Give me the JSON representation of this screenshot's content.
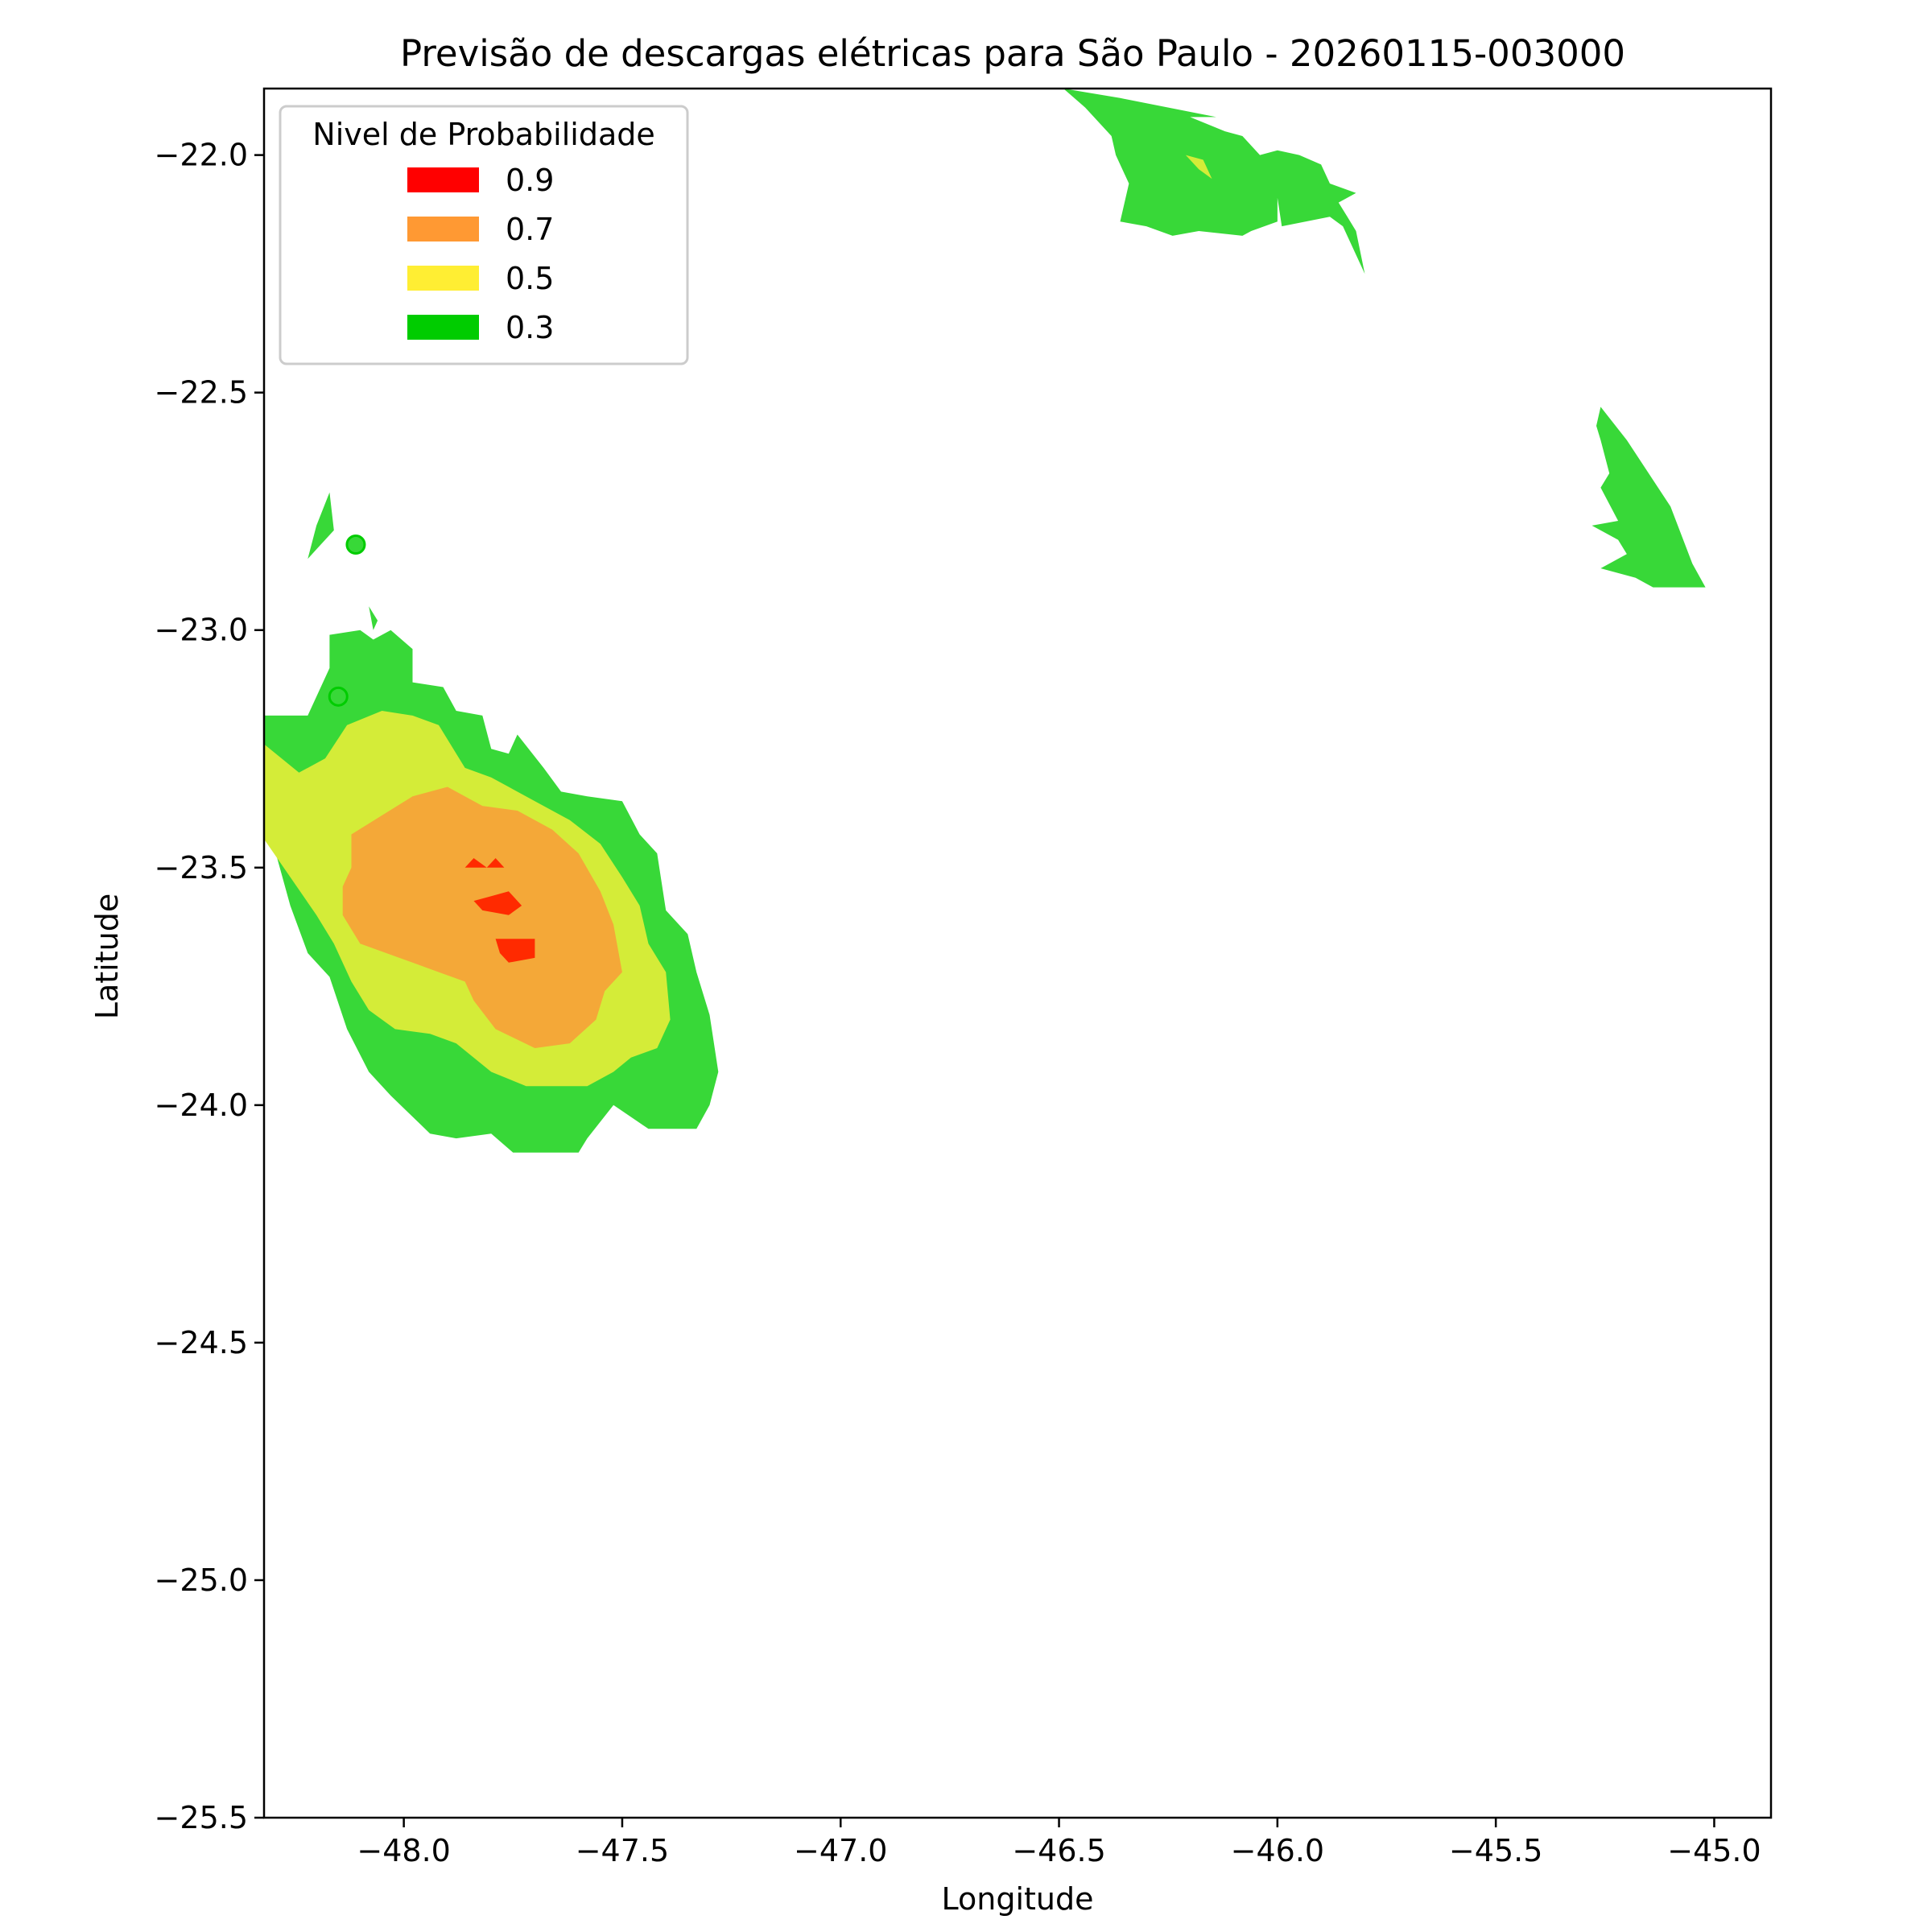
{
  "chart_data": {
    "type": "contour",
    "title": "Previsão de descargas elétricas para São Paulo - 20260115-003000",
    "xlabel": "Longitude",
    "ylabel": "Latitude",
    "xlim": [
      -48.32,
      -44.87
    ],
    "ylim": [
      -25.5,
      -21.86
    ],
    "xticks": [
      -48.0,
      -47.5,
      -47.0,
      -46.5,
      -46.0,
      -45.5,
      -45.0
    ],
    "xtick_labels": [
      "−48.0",
      "−47.5",
      "−47.0",
      "−46.5",
      "−46.0",
      "−45.5",
      "−45.0"
    ],
    "yticks": [
      -22.0,
      -22.5,
      -23.0,
      -23.5,
      -24.0,
      -24.5,
      -25.0,
      -25.5
    ],
    "ytick_labels": [
      "−22.0",
      "−22.5",
      "−23.0",
      "−23.5",
      "−24.0",
      "−24.5",
      "−25.0",
      "−25.5"
    ],
    "grid": false,
    "legend": {
      "title": "Nivel de Probabilidade",
      "placement": "top-left",
      "items": [
        {
          "label": "0.9",
          "color": "#ff0000"
        },
        {
          "label": "0.7",
          "color": "#ff9933"
        },
        {
          "label": "0.5",
          "color": "#ffee33"
        },
        {
          "label": "0.3",
          "color": "#00cc00"
        }
      ]
    },
    "level_fill_colors": {
      "0.3": "#38d838",
      "0.5": "#d4ec38",
      "0.7": "#f4a838",
      "0.9": "#ff2a00"
    },
    "regions": [
      {
        "level": 0.3,
        "name": "main-cell-outer",
        "points": [
          [
            -48.32,
            -23.18
          ],
          [
            -48.22,
            -23.18
          ],
          [
            -48.17,
            -23.08
          ],
          [
            -48.17,
            -23.01
          ],
          [
            -48.1,
            -23.0
          ],
          [
            -48.07,
            -23.02
          ],
          [
            -48.03,
            -23.0
          ],
          [
            -47.98,
            -23.04
          ],
          [
            -47.98,
            -23.11
          ],
          [
            -47.91,
            -23.12
          ],
          [
            -47.88,
            -23.17
          ],
          [
            -47.82,
            -23.18
          ],
          [
            -47.8,
            -23.25
          ],
          [
            -47.76,
            -23.26
          ],
          [
            -47.74,
            -23.22
          ],
          [
            -47.68,
            -23.29
          ],
          [
            -47.64,
            -23.34
          ],
          [
            -47.58,
            -23.35
          ],
          [
            -47.5,
            -23.36
          ],
          [
            -47.46,
            -23.43
          ],
          [
            -47.42,
            -23.47
          ],
          [
            -47.4,
            -23.59
          ],
          [
            -47.35,
            -23.64
          ],
          [
            -47.33,
            -23.72
          ],
          [
            -47.3,
            -23.81
          ],
          [
            -47.28,
            -23.93
          ],
          [
            -47.3,
            -24.0
          ],
          [
            -47.33,
            -24.05
          ],
          [
            -47.44,
            -24.05
          ],
          [
            -47.52,
            -24.0
          ],
          [
            -47.58,
            -24.07
          ],
          [
            -47.6,
            -24.1
          ],
          [
            -47.75,
            -24.1
          ],
          [
            -47.8,
            -24.06
          ],
          [
            -47.88,
            -24.07
          ],
          [
            -47.94,
            -24.06
          ],
          [
            -48.03,
            -23.98
          ],
          [
            -48.08,
            -23.93
          ],
          [
            -48.13,
            -23.84
          ],
          [
            -48.17,
            -23.73
          ],
          [
            -48.22,
            -23.68
          ],
          [
            -48.26,
            -23.58
          ],
          [
            -48.29,
            -23.48
          ],
          [
            -48.32,
            -23.4
          ]
        ]
      },
      {
        "level": 0.5,
        "name": "main-cell-middle",
        "points": [
          [
            -48.32,
            -23.24
          ],
          [
            -48.24,
            -23.3
          ],
          [
            -48.18,
            -23.27
          ],
          [
            -48.13,
            -23.2
          ],
          [
            -48.05,
            -23.17
          ],
          [
            -47.98,
            -23.18
          ],
          [
            -47.92,
            -23.2
          ],
          [
            -47.86,
            -23.29
          ],
          [
            -47.8,
            -23.31
          ],
          [
            -47.76,
            -23.33
          ],
          [
            -47.7,
            -23.36
          ],
          [
            -47.62,
            -23.4
          ],
          [
            -47.55,
            -23.45
          ],
          [
            -47.5,
            -23.52
          ],
          [
            -47.46,
            -23.58
          ],
          [
            -47.44,
            -23.66
          ],
          [
            -47.4,
            -23.72
          ],
          [
            -47.39,
            -23.82
          ],
          [
            -47.42,
            -23.88
          ],
          [
            -47.48,
            -23.9
          ],
          [
            -47.52,
            -23.93
          ],
          [
            -47.58,
            -23.96
          ],
          [
            -47.72,
            -23.96
          ],
          [
            -47.8,
            -23.93
          ],
          [
            -47.88,
            -23.87
          ],
          [
            -47.94,
            -23.85
          ],
          [
            -48.02,
            -23.84
          ],
          [
            -48.08,
            -23.8
          ],
          [
            -48.12,
            -23.74
          ],
          [
            -48.16,
            -23.66
          ],
          [
            -48.2,
            -23.6
          ],
          [
            -48.26,
            -23.52
          ],
          [
            -48.32,
            -23.44
          ]
        ]
      },
      {
        "level": 0.7,
        "name": "main-cell-inner",
        "points": [
          [
            -48.12,
            -23.43
          ],
          [
            -48.05,
            -23.39
          ],
          [
            -47.98,
            -23.35
          ],
          [
            -47.9,
            -23.33
          ],
          [
            -47.82,
            -23.37
          ],
          [
            -47.74,
            -23.38
          ],
          [
            -47.66,
            -23.42
          ],
          [
            -47.6,
            -23.47
          ],
          [
            -47.55,
            -23.55
          ],
          [
            -47.52,
            -23.62
          ],
          [
            -47.5,
            -23.72
          ],
          [
            -47.54,
            -23.76
          ],
          [
            -47.56,
            -23.82
          ],
          [
            -47.62,
            -23.87
          ],
          [
            -47.7,
            -23.88
          ],
          [
            -47.79,
            -23.84
          ],
          [
            -47.84,
            -23.78
          ],
          [
            -47.86,
            -23.74
          ],
          [
            -47.92,
            -23.72
          ],
          [
            -47.98,
            -23.7
          ],
          [
            -48.04,
            -23.68
          ],
          [
            -48.1,
            -23.66
          ],
          [
            -48.14,
            -23.6
          ],
          [
            -48.14,
            -23.54
          ],
          [
            -48.12,
            -23.5
          ]
        ]
      },
      {
        "level": 0.9,
        "name": "core-1",
        "points": [
          [
            -47.86,
            -23.5
          ],
          [
            -47.84,
            -23.48
          ],
          [
            -47.81,
            -23.5
          ],
          [
            -47.79,
            -23.48
          ],
          [
            -47.77,
            -23.5
          ]
        ]
      },
      {
        "level": 0.9,
        "name": "core-2",
        "points": [
          [
            -47.84,
            -23.57
          ],
          [
            -47.8,
            -23.56
          ],
          [
            -47.76,
            -23.55
          ],
          [
            -47.73,
            -23.58
          ],
          [
            -47.76,
            -23.6
          ],
          [
            -47.82,
            -23.59
          ]
        ]
      },
      {
        "level": 0.9,
        "name": "core-3",
        "points": [
          [
            -47.79,
            -23.65
          ],
          [
            -47.7,
            -23.65
          ],
          [
            -47.7,
            -23.69
          ],
          [
            -47.76,
            -23.7
          ],
          [
            -47.78,
            -23.68
          ]
        ]
      },
      {
        "level": 0.3,
        "name": "north-cell",
        "points": [
          [
            -46.49,
            -21.86
          ],
          [
            -46.36,
            -21.88
          ],
          [
            -46.14,
            -21.92
          ],
          [
            -46.2,
            -21.92
          ],
          [
            -46.12,
            -21.95
          ],
          [
            -46.08,
            -21.96
          ],
          [
            -46.04,
            -22.0
          ],
          [
            -46.0,
            -21.99
          ],
          [
            -45.95,
            -22.0
          ],
          [
            -45.9,
            -22.02
          ],
          [
            -45.88,
            -22.06
          ],
          [
            -45.82,
            -22.08
          ],
          [
            -45.86,
            -22.1
          ],
          [
            -45.84,
            -22.13
          ],
          [
            -45.82,
            -22.16
          ],
          [
            -45.8,
            -22.25
          ],
          [
            -45.85,
            -22.15
          ],
          [
            -45.88,
            -22.13
          ],
          [
            -45.99,
            -22.15
          ],
          [
            -46.0,
            -22.09
          ],
          [
            -46.0,
            -22.14
          ],
          [
            -46.06,
            -22.16
          ],
          [
            -46.08,
            -22.17
          ],
          [
            -46.18,
            -22.16
          ],
          [
            -46.24,
            -22.17
          ],
          [
            -46.3,
            -22.15
          ],
          [
            -46.36,
            -22.14
          ],
          [
            -46.34,
            -22.06
          ],
          [
            -46.37,
            -22.0
          ],
          [
            -46.38,
            -21.96
          ],
          [
            -46.44,
            -21.9
          ]
        ]
      },
      {
        "level": 0.5,
        "name": "north-cell-spot",
        "points": [
          [
            -46.21,
            -22.0
          ],
          [
            -46.17,
            -22.01
          ],
          [
            -46.15,
            -22.05
          ],
          [
            -46.18,
            -22.03
          ]
        ]
      },
      {
        "level": 0.3,
        "name": "east-strip",
        "points": [
          [
            -45.26,
            -22.53
          ],
          [
            -45.2,
            -22.6
          ],
          [
            -45.1,
            -22.74
          ],
          [
            -45.05,
            -22.86
          ],
          [
            -45.02,
            -22.91
          ],
          [
            -45.14,
            -22.91
          ],
          [
            -45.18,
            -22.89
          ],
          [
            -45.26,
            -22.87
          ],
          [
            -45.2,
            -22.84
          ],
          [
            -45.22,
            -22.81
          ],
          [
            -45.28,
            -22.78
          ],
          [
            -45.22,
            -22.77
          ],
          [
            -45.26,
            -22.7
          ],
          [
            -45.24,
            -22.67
          ],
          [
            -45.26,
            -22.6
          ],
          [
            -45.27,
            -22.57
          ]
        ]
      },
      {
        "level": 0.3,
        "name": "nw-fragment-1",
        "points": [
          [
            -48.17,
            -22.71
          ],
          [
            -48.2,
            -22.78
          ],
          [
            -48.22,
            -22.85
          ],
          [
            -48.2,
            -22.83
          ],
          [
            -48.16,
            -22.79
          ]
        ]
      },
      {
        "level": 0.3,
        "name": "nw-fragment-2",
        "points": [
          [
            -48.08,
            -22.95
          ],
          [
            -48.06,
            -22.98
          ],
          [
            -48.07,
            -23.0
          ]
        ]
      }
    ],
    "markers": [
      {
        "x": -48.11,
        "y": -22.82,
        "level": 0.3
      },
      {
        "x": -48.15,
        "y": -23.14,
        "level": 0.3
      }
    ]
  }
}
